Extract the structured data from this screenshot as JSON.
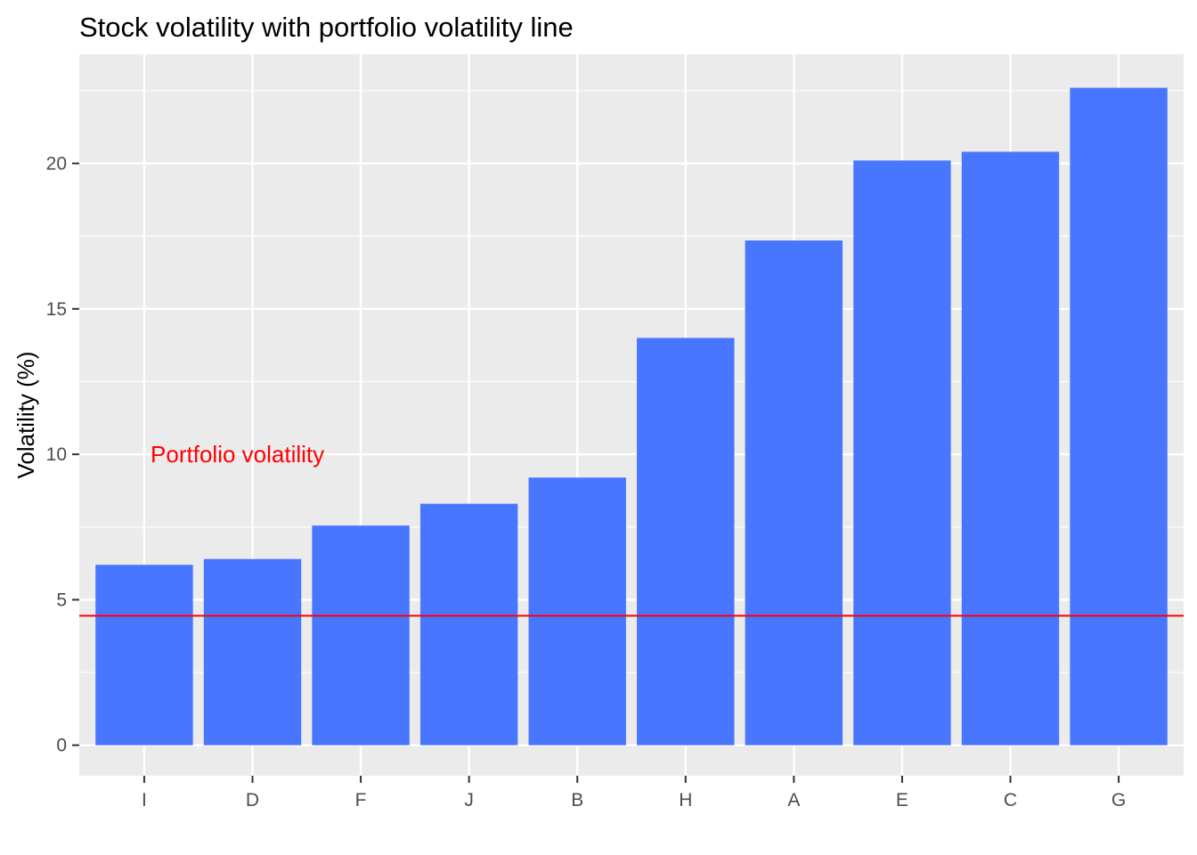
{
  "chart_data": {
    "type": "bar",
    "title": "Stock volatility with portfolio volatility line",
    "xlabel": "",
    "ylabel": "Volatility (%)",
    "categories": [
      "I",
      "D",
      "F",
      "J",
      "B",
      "H",
      "A",
      "E",
      "C",
      "G"
    ],
    "values": [
      6.2,
      6.4,
      7.55,
      8.3,
      9.2,
      14.0,
      17.35,
      20.1,
      20.4,
      22.6
    ],
    "ylim": [
      -1.05,
      23.75
    ],
    "yticks": [
      0,
      5,
      10,
      15,
      20
    ],
    "ytick_labels": [
      "0",
      "5",
      "10",
      "15",
      "20"
    ],
    "grid": true,
    "bar_color": "#4876FF",
    "panel_background": "#EBEBEB",
    "reference_line": {
      "value": 4.45,
      "color": "#FF0000",
      "label": "Portfolio volatility",
      "label_y": 10
    }
  }
}
